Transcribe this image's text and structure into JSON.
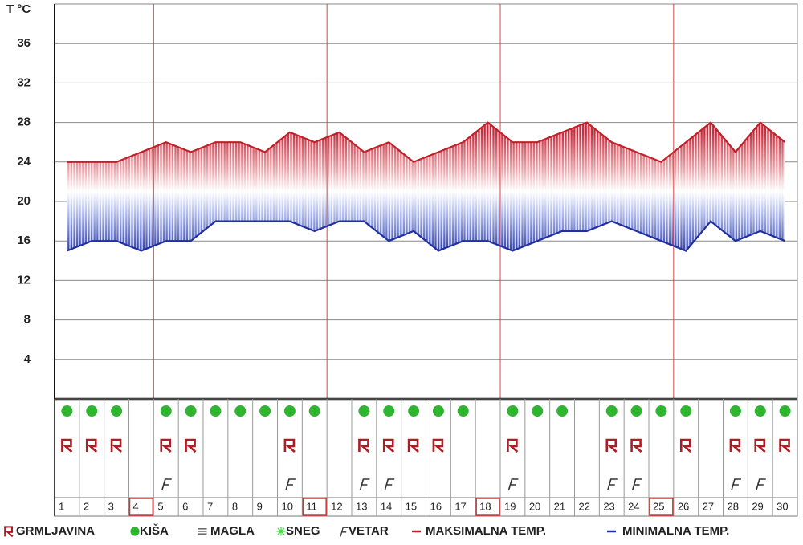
{
  "chart_data": {
    "type": "line",
    "y_label": "T °C",
    "x": [
      1,
      2,
      3,
      4,
      5,
      6,
      7,
      8,
      9,
      10,
      11,
      12,
      13,
      14,
      15,
      16,
      17,
      18,
      19,
      20,
      21,
      22,
      23,
      24,
      25,
      26,
      27,
      28,
      29,
      30
    ],
    "highlighted_x": [
      4,
      11,
      18,
      25
    ],
    "ylim": [
      0,
      40
    ],
    "yticks": [
      4,
      8,
      12,
      16,
      20,
      24,
      28,
      32,
      36
    ],
    "grid": true,
    "band_fill": true,
    "series": [
      {
        "name": "MAKSIMALNA TEMP.",
        "color": "#c0202a",
        "values": [
          24,
          24,
          24,
          25,
          26,
          25,
          26,
          26,
          25,
          27,
          26,
          27,
          25,
          26,
          24,
          25,
          26,
          28,
          26,
          26,
          27,
          28,
          26,
          25,
          24,
          26,
          28,
          25,
          28,
          26
        ]
      },
      {
        "name": "MINIMALNA TEMP.",
        "color": "#2030a0",
        "values": [
          15,
          16,
          16,
          15,
          16,
          16,
          18,
          18,
          18,
          18,
          17,
          18,
          18,
          16,
          17,
          15,
          16,
          16,
          15,
          16,
          17,
          17,
          18,
          17,
          16,
          15,
          18,
          16,
          17,
          16
        ]
      }
    ],
    "weather": [
      {
        "name": "GRMLJAVINA",
        "icon": "thunder",
        "color": "#b01c24",
        "days": [
          1,
          2,
          3,
          5,
          6,
          10,
          13,
          14,
          15,
          16,
          19,
          23,
          24,
          26,
          28,
          29,
          30
        ]
      },
      {
        "name": "KIŠA",
        "icon": "rain",
        "color": "#2fb52f",
        "days": [
          1,
          2,
          3,
          5,
          6,
          7,
          8,
          9,
          10,
          11,
          13,
          14,
          15,
          16,
          17,
          19,
          20,
          21,
          23,
          24,
          25,
          26,
          28,
          29,
          30
        ]
      },
      {
        "name": "MAGLA",
        "icon": "fog",
        "color": "#555555",
        "days": []
      },
      {
        "name": "SNEG",
        "icon": "snow",
        "color": "#44dd44",
        "days": []
      },
      {
        "name": "VETAR",
        "icon": "wind",
        "color": "#333333",
        "days": [
          5,
          10,
          13,
          14,
          19,
          23,
          24,
          28,
          29
        ]
      }
    ]
  }
}
